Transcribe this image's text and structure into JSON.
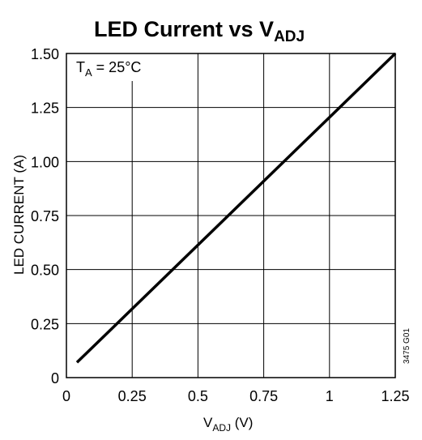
{
  "chart_data": {
    "type": "line",
    "title": {
      "main": "LED Current vs V",
      "sub": "ADJ"
    },
    "xlabel": {
      "main": "V",
      "sub": "ADJ",
      "tail": " (V)"
    },
    "ylabel": "LED CURRENT (A)",
    "xlim": [
      0,
      1.25
    ],
    "ylim": [
      0,
      1.5
    ],
    "x_ticks": [
      {
        "value": 0,
        "label": "0"
      },
      {
        "value": 0.25,
        "label": "0.25"
      },
      {
        "value": 0.5,
        "label": "0.5"
      },
      {
        "value": 0.75,
        "label": "0.75"
      },
      {
        "value": 1,
        "label": "1"
      },
      {
        "value": 1.25,
        "label": "1.25"
      }
    ],
    "y_ticks": [
      {
        "value": 0,
        "label": "0"
      },
      {
        "value": 0.25,
        "label": "0.25"
      },
      {
        "value": 0.5,
        "label": "0.50"
      },
      {
        "value": 0.75,
        "label": "0.75"
      },
      {
        "value": 1,
        "label": "1.00"
      },
      {
        "value": 1.25,
        "label": "1.25"
      },
      {
        "value": 1.5,
        "label": "1.50"
      }
    ],
    "grid": true,
    "series": [
      {
        "x": [
          0.04,
          1.25
        ],
        "y": [
          0.07,
          1.5
        ],
        "color": "#000000"
      }
    ],
    "annotation": {
      "main": "T",
      "sub": "A",
      "tail": " = 25°C"
    },
    "figure_id": "3475 G01"
  }
}
